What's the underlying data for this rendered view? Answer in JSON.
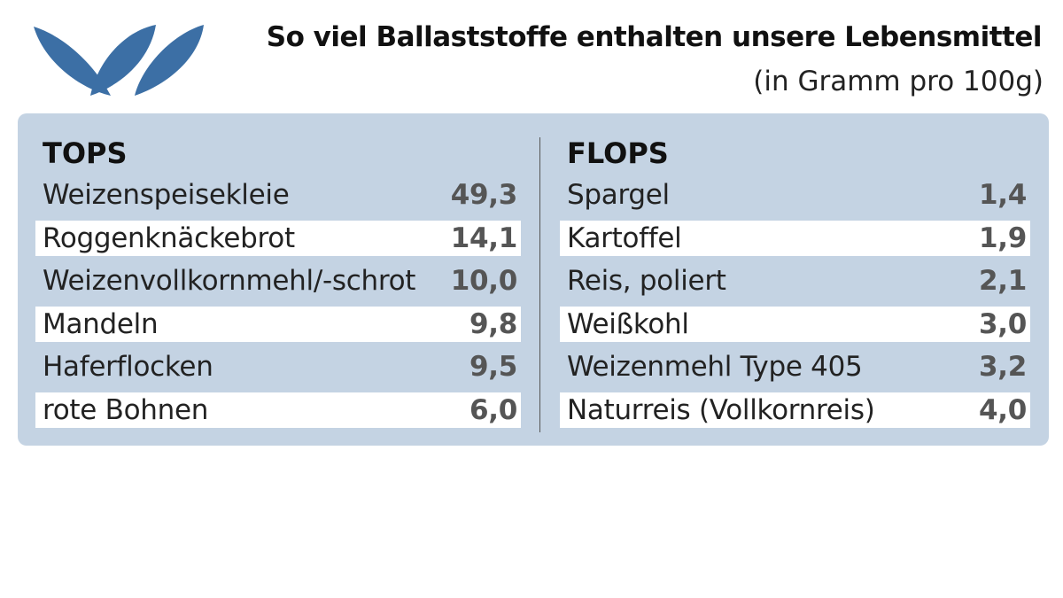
{
  "header": {
    "title": "So viel Ballaststoffe enthalten unsere Lebensmittel",
    "subtitle": "(in Gramm pro 100g)"
  },
  "tops": {
    "heading": "TOPS",
    "rows": [
      [
        "Weizenspeisekleie",
        "49,3"
      ],
      [
        "Roggenknäckebrot",
        "14,1"
      ],
      [
        "Weizenvollkornmehl/-schrot",
        "10,0"
      ],
      [
        "Mandeln",
        "9,8"
      ],
      [
        "Haferflocken",
        "9,5"
      ],
      [
        "rote Bohnen",
        "6,0"
      ]
    ]
  },
  "flops": {
    "heading": "FLOPS",
    "rows": [
      [
        "Spargel",
        "1,4"
      ],
      [
        "Kartoffel",
        "1,9"
      ],
      [
        "Reis, poliert",
        "2,1"
      ],
      [
        "Weißkohl",
        "3,0"
      ],
      [
        "Weizenmehl Type 405",
        "3,2"
      ],
      [
        "Naturreis (Vollkornreis)",
        "4,0"
      ]
    ]
  }
}
